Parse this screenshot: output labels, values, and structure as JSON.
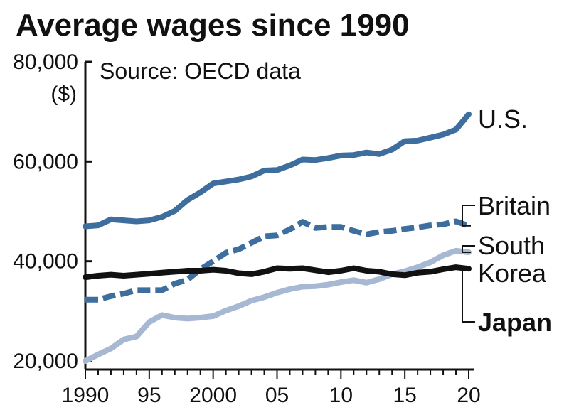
{
  "chart_data": {
    "type": "line",
    "title": "Average wages since 1990",
    "source": "Source: OECD data",
    "y_unit": "($)",
    "ylim": [
      20000,
      80000
    ],
    "xlim": [
      1990,
      2020
    ],
    "y_ticks": [
      {
        "value": 80000,
        "label": "80,000"
      },
      {
        "value": 60000,
        "label": "60,000"
      },
      {
        "value": 40000,
        "label": "40,000"
      },
      {
        "value": 20000,
        "label": "20,000"
      }
    ],
    "x_ticks": [
      {
        "value": 1990,
        "label": "1990"
      },
      {
        "value": 1995,
        "label": "95"
      },
      {
        "value": 2000,
        "label": "2000"
      },
      {
        "value": 2005,
        "label": "05"
      },
      {
        "value": 2010,
        "label": "10"
      },
      {
        "value": 2015,
        "label": "15"
      },
      {
        "value": 2020,
        "label": "20"
      }
    ],
    "grid": false,
    "x": [
      1990,
      1991,
      1992,
      1993,
      1994,
      1995,
      1996,
      1997,
      1998,
      1999,
      2000,
      2001,
      2002,
      2003,
      2004,
      2005,
      2006,
      2007,
      2008,
      2009,
      2010,
      2011,
      2012,
      2013,
      2014,
      2015,
      2016,
      2017,
      2018,
      2019,
      2020
    ],
    "series": [
      {
        "name": "U.S.",
        "color": "#3e6e9e",
        "style": "solid",
        "label_lines": [
          "U.S."
        ],
        "values": [
          47000,
          47200,
          48400,
          48200,
          48000,
          48200,
          48900,
          50100,
          52300,
          53800,
          55600,
          56000,
          56400,
          57000,
          58200,
          58300,
          59200,
          60400,
          60300,
          60700,
          61200,
          61300,
          61800,
          61500,
          62400,
          64100,
          64200,
          64800,
          65400,
          66400,
          69500
        ]
      },
      {
        "name": "Britain",
        "color": "#3e6e9e",
        "style": "dashed",
        "label_lines": [
          "Britain"
        ],
        "values": [
          32300,
          32300,
          33000,
          33500,
          34200,
          34200,
          34200,
          35500,
          36300,
          38400,
          40000,
          41700,
          42400,
          43700,
          45000,
          45200,
          46400,
          47900,
          46700,
          46900,
          46900,
          46100,
          45400,
          45900,
          46100,
          46500,
          46800,
          47200,
          47400,
          48000,
          47100
        ]
      },
      {
        "name": "South Korea",
        "color": "#a7b8d2",
        "style": "solid",
        "label_lines": [
          "South",
          "Korea"
        ],
        "values": [
          20000,
          21300,
          22500,
          24300,
          24900,
          27800,
          29200,
          28700,
          28500,
          28700,
          29000,
          30100,
          31000,
          32100,
          32800,
          33700,
          34400,
          34900,
          35000,
          35300,
          35800,
          36200,
          35700,
          36400,
          37400,
          38000,
          38800,
          39800,
          41200,
          42100,
          41800
        ]
      },
      {
        "name": "Japan",
        "color": "#111111",
        "style": "solid",
        "label_lines": [
          "Japan"
        ],
        "values": [
          36800,
          37100,
          37300,
          37100,
          37300,
          37500,
          37700,
          37900,
          38100,
          38100,
          38300,
          38100,
          37600,
          37400,
          37900,
          38600,
          38500,
          38600,
          38200,
          37800,
          38100,
          38600,
          38100,
          37900,
          37400,
          37200,
          37700,
          37900,
          38400,
          38800,
          38500
        ]
      }
    ]
  }
}
